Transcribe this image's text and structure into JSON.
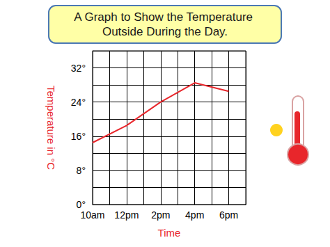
{
  "chart_data": {
    "type": "line",
    "title": "A Graph to Show the Temperature Outside During the Day.",
    "x_label": "Time",
    "y_label": "Temperature in °C",
    "x": [
      10,
      12,
      14,
      16,
      18
    ],
    "values": [
      14.5,
      18.5,
      24,
      28.5,
      26.5
    ],
    "color": "#e8262b",
    "xlim": [
      10,
      19
    ],
    "xticks": [
      {
        "value": 10,
        "label": "10am"
      },
      {
        "value": 12,
        "label": "12pm"
      },
      {
        "value": 14,
        "label": "2pm"
      },
      {
        "value": 16,
        "label": "4pm"
      },
      {
        "value": 18,
        "label": "6pm"
      }
    ],
    "ylim": [
      0,
      36
    ],
    "yticks": [
      {
        "value": 0,
        "label": "0°"
      },
      {
        "value": 8,
        "label": "8°"
      },
      {
        "value": 16,
        "label": "16°"
      },
      {
        "value": 24,
        "label": "24°"
      },
      {
        "value": 32,
        "label": "32°"
      }
    ],
    "grid": true
  }
}
